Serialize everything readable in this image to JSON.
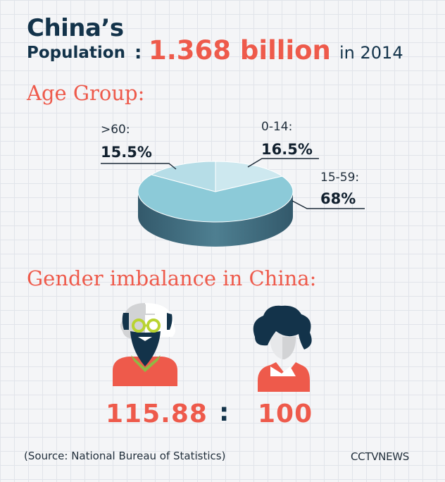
{
  "title": {
    "line1": "China’s",
    "line2": "Population",
    "colon": ":",
    "highlight": "1.368 billion",
    "suffix": "in 2014"
  },
  "age_section": {
    "heading": "Age Group:"
  },
  "chart_data": {
    "type": "pie",
    "title": "Age Group:",
    "slices": [
      {
        "label": "0-14:",
        "value_text": "16.5%",
        "value": 16.5,
        "color": "#cde8ef"
      },
      {
        "label": "15-59:",
        "value_text": "68%",
        "value": 68,
        "color": "#8ccad8"
      },
      {
        "label": ">60:",
        "value_text": "15.5%",
        "value": 15.5,
        "color": "#b6dde7"
      }
    ],
    "side_color": "#4e7f91",
    "side_color_dark": "#33596b"
  },
  "gender_section": {
    "heading": "Gender imbalance in China:",
    "male_value": "115.88",
    "separator": ":",
    "female_value": "100",
    "icons": [
      "man-icon",
      "woman-icon"
    ]
  },
  "footer": {
    "source": "(Source: National Bureau of Statistics)",
    "brand": "CCTVNEWS"
  },
  "colors": {
    "navy": "#13334a",
    "accent_red": "#ee5a4b",
    "background": "#f4f5f7",
    "grid": "#e1e4ea"
  }
}
